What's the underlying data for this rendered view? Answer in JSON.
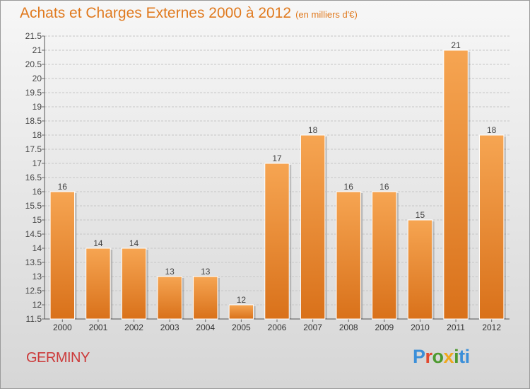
{
  "header": {
    "title": "Achats et Charges Externes 2000 à 2012",
    "unit": "(en milliers d'€)"
  },
  "footer": {
    "place": "GERMINY",
    "logo": "Proxiti",
    "logo_colors": [
      "#3b8fd9",
      "#e2482e",
      "#4d9a2f",
      "#f0a81d",
      "#3b8fd9"
    ]
  },
  "colors": {
    "bar_light": "#f6a552",
    "bar_dark": "#d9711a",
    "title": "#e07a1f",
    "place": "#cc3a3a",
    "grid": "#c6c6c6"
  },
  "chart_data": {
    "type": "bar",
    "title": "Achats et Charges Externes 2000 à 2012",
    "xlabel": "",
    "ylabel": "",
    "categories": [
      "2000",
      "2001",
      "2002",
      "2003",
      "2004",
      "2005",
      "2006",
      "2007",
      "2008",
      "2009",
      "2010",
      "2011",
      "2012"
    ],
    "values": [
      16,
      14,
      14,
      13,
      13,
      12,
      17,
      18,
      16,
      16,
      15,
      21,
      18
    ],
    "data_labels": [
      "16",
      "14",
      "14",
      "13",
      "13",
      "12",
      "17",
      "18",
      "16",
      "16",
      "15",
      "21",
      "18"
    ],
    "ylim": [
      11.5,
      21.5
    ],
    "yticks": [
      11.5,
      12,
      12.5,
      13,
      13.5,
      14,
      14.5,
      15,
      15.5,
      16,
      16.5,
      17,
      17.5,
      18,
      18.5,
      19,
      19.5,
      20,
      20.5,
      21,
      21.5
    ],
    "ytick_labels": [
      "11.5",
      "12",
      "12.5",
      "13",
      "13.5",
      "14",
      "14.5",
      "15",
      "15.5",
      "16",
      "16.5",
      "17",
      "17.5",
      "18",
      "18.5",
      "19",
      "19.5",
      "20",
      "20.5",
      "21",
      "21.5"
    ],
    "grid": true
  }
}
